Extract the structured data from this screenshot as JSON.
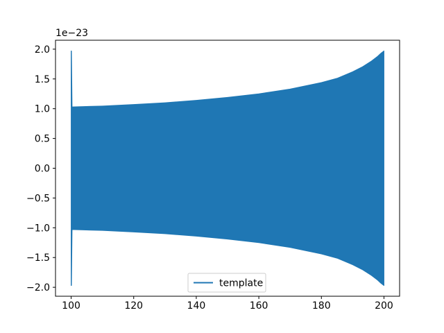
{
  "chart_data": {
    "type": "line",
    "title": "",
    "xlabel": "",
    "ylabel": "",
    "xlim": [
      95,
      205
    ],
    "ylim": [
      -2.15,
      2.15
    ],
    "x_ticks": [
      100,
      120,
      140,
      160,
      180,
      200
    ],
    "x_tick_labels": [
      "100",
      "120",
      "140",
      "160",
      "180",
      "200"
    ],
    "y_ticks": [
      -2.0,
      -1.5,
      -1.0,
      -0.5,
      0.0,
      0.5,
      1.0,
      1.5,
      2.0
    ],
    "y_tick_labels": [
      "−2.0",
      "−1.5",
      "−1.0",
      "−0.5",
      "0.0",
      "0.5",
      "1.0",
      "1.5",
      "2.0"
    ],
    "y_offset_text": "1e−23",
    "grid": false,
    "legend": {
      "position": "lower center",
      "entries": [
        "template"
      ]
    },
    "series": [
      {
        "name": "template",
        "color": "#1f77b4",
        "description_points": {
          "x": [
            100,
            100.1,
            100.3,
            110,
            120,
            130,
            140,
            150,
            160,
            170,
            180,
            185,
            190,
            193,
            196,
            198,
            199,
            200
          ],
          "envelope": [
            1.97,
            1.97,
            1.03,
            1.045,
            1.07,
            1.1,
            1.14,
            1.19,
            1.25,
            1.33,
            1.44,
            1.51,
            1.62,
            1.7,
            1.8,
            1.88,
            1.93,
            1.97
          ]
        }
      }
    ]
  }
}
